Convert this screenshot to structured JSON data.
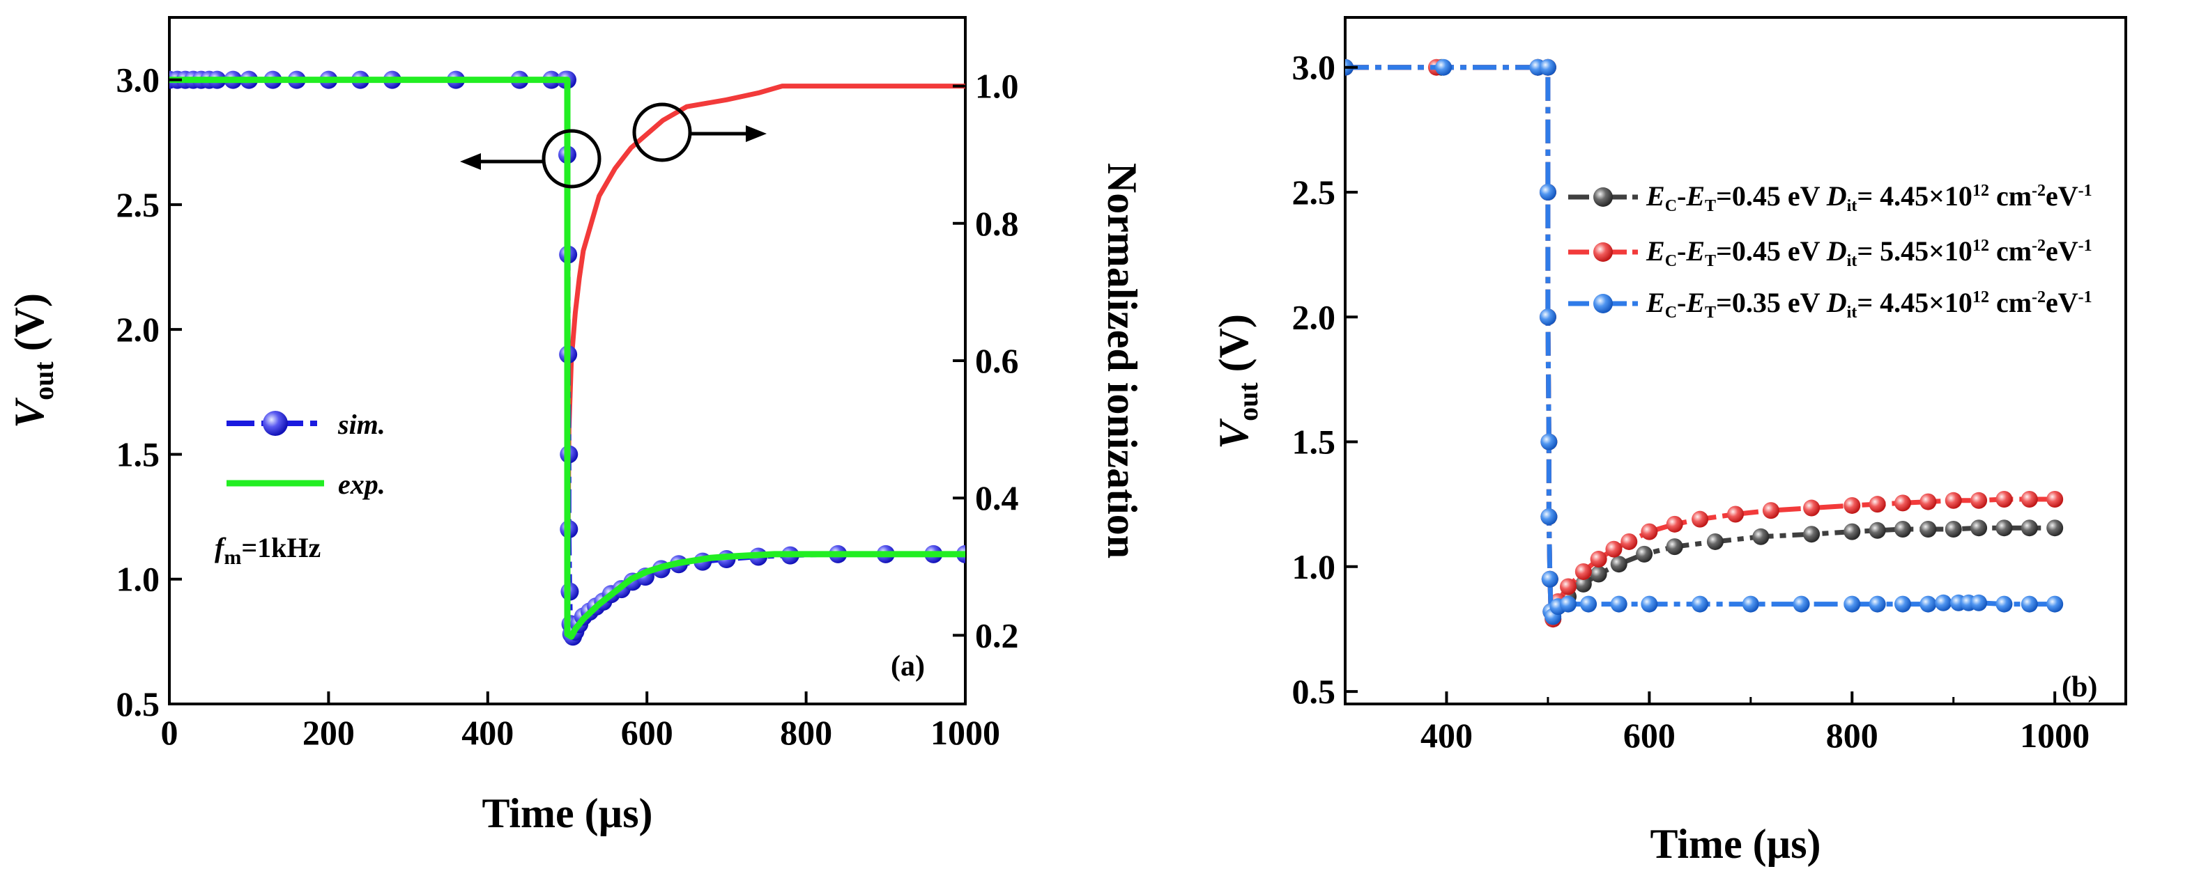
{
  "chart_data": [
    {
      "type": "line",
      "panel_label": "(a)",
      "xlabel": "Time (µs)",
      "ylabel": {
        "main": "V",
        "sub": "out",
        "unit": " (V)"
      },
      "y2label": "Normalized ionization",
      "xlim": [
        0,
        1000
      ],
      "ylim": [
        0.5,
        3.25
      ],
      "y2lim": [
        0.1,
        1.1
      ],
      "xticks": [
        "0",
        "200",
        "400",
        "600",
        "800",
        "1000"
      ],
      "yticks": [
        "0.5",
        "1.0",
        "1.5",
        "2.0",
        "2.5",
        "3.0"
      ],
      "y2ticks": [
        "0.2",
        "0.4",
        "0.6",
        "0.8",
        "1.0"
      ],
      "annotation": {
        "var": "f",
        "sub": "m",
        "rest": "=1kHz"
      },
      "series": [
        {
          "name": "sim.",
          "axis": "left",
          "color": "#1a1adf",
          "marker": "circle",
          "x": [
            0,
            10,
            20,
            30,
            40,
            50,
            60,
            80,
            100,
            130,
            160,
            200,
            240,
            280,
            360,
            440,
            480,
            498,
            500,
            500,
            501,
            501,
            502,
            502,
            503,
            504,
            505,
            507,
            510,
            515,
            520,
            528,
            536,
            545,
            555,
            568,
            582,
            598,
            618,
            640,
            670,
            700,
            740,
            780,
            840,
            900,
            960,
            1000
          ],
          "y": [
            3.0,
            3.0,
            3.0,
            3.0,
            3.0,
            3.0,
            3.0,
            3.0,
            3.0,
            3.0,
            3.0,
            3.0,
            3.0,
            3.0,
            3.0,
            3.0,
            3.0,
            3.0,
            3.0,
            2.7,
            2.3,
            1.9,
            1.5,
            1.2,
            0.95,
            0.82,
            0.78,
            0.77,
            0.79,
            0.82,
            0.85,
            0.87,
            0.89,
            0.91,
            0.94,
            0.96,
            0.99,
            1.01,
            1.04,
            1.06,
            1.07,
            1.08,
            1.09,
            1.095,
            1.1,
            1.1,
            1.1,
            1.1
          ]
        },
        {
          "name": "exp.",
          "axis": "left",
          "color": "#22ee22",
          "marker": "none",
          "x": [
            0,
            500,
            500,
            505,
            510,
            520,
            540,
            560,
            580,
            600,
            620,
            640,
            660,
            680,
            700,
            730,
            760,
            800,
            900,
            1000
          ],
          "y": [
            3.0,
            3.0,
            0.78,
            0.77,
            0.8,
            0.84,
            0.9,
            0.95,
            1.0,
            1.03,
            1.05,
            1.065,
            1.075,
            1.085,
            1.09,
            1.095,
            1.1,
            1.1,
            1.1,
            1.1
          ],
          "annotation": "fm=1kHz"
        },
        {
          "name": "Normalized ionization",
          "axis": "right",
          "color": "#f23a3a",
          "marker": "none",
          "x": [
            500,
            502,
            505,
            510,
            515,
            520,
            530,
            540,
            550,
            560,
            580,
            600,
            620,
            650,
            700,
            740,
            770,
            800,
            900,
            1000
          ],
          "y": [
            0.2,
            0.5,
            0.6,
            0.67,
            0.72,
            0.76,
            0.8,
            0.84,
            0.86,
            0.88,
            0.91,
            0.93,
            0.95,
            0.97,
            0.98,
            0.99,
            1.0,
            1.0,
            1.0,
            1.0
          ]
        }
      ]
    },
    {
      "type": "line",
      "panel_label": "(b)",
      "xlabel": "Time (µs)",
      "ylabel": {
        "main": "V",
        "sub": "out",
        "unit": " (V)"
      },
      "xlim": [
        300,
        1070
      ],
      "ylim": [
        0.45,
        3.2
      ],
      "xticks": [
        "400",
        "600",
        "800",
        "1000"
      ],
      "yticks": [
        "0.5",
        "1.0",
        "1.5",
        "2.0",
        "2.5",
        "3.0"
      ],
      "series": [
        {
          "name": "EC-ET=0.45 eV Dit= 4.45×10^12 cm^-2eV^-1",
          "label": {
            "ec": "0.45",
            "dit": "4.45"
          },
          "color": "#3f3f3f",
          "x": [
            300,
            395,
            490,
            500,
            500,
            500,
            501,
            501,
            502,
            503,
            505,
            510,
            520,
            535,
            550,
            570,
            595,
            625,
            665,
            710,
            760,
            800,
            825,
            850,
            875,
            900,
            925,
            950,
            975,
            1000
          ],
          "y": [
            3.0,
            3.0,
            3.0,
            3.0,
            2.5,
            2.0,
            1.5,
            1.2,
            0.95,
            0.82,
            0.79,
            0.84,
            0.88,
            0.93,
            0.97,
            1.01,
            1.05,
            1.08,
            1.1,
            1.12,
            1.13,
            1.14,
            1.145,
            1.15,
            1.15,
            1.15,
            1.155,
            1.155,
            1.155,
            1.155
          ]
        },
        {
          "name": "EC-ET=0.45 eV Dit= 5.45×10^12 cm^-2eV^-1",
          "label": {
            "ec": "0.45",
            "dit": "5.45"
          },
          "color": "#f23a3a",
          "x": [
            300,
            390,
            490,
            500,
            500,
            500,
            501,
            501,
            502,
            503,
            505,
            510,
            520,
            535,
            550,
            565,
            580,
            600,
            625,
            650,
            685,
            720,
            760,
            800,
            825,
            850,
            875,
            900,
            925,
            950,
            975,
            1000
          ],
          "y": [
            3.0,
            3.0,
            3.0,
            3.0,
            2.5,
            2.0,
            1.5,
            1.2,
            0.95,
            0.82,
            0.79,
            0.86,
            0.92,
            0.98,
            1.03,
            1.07,
            1.1,
            1.14,
            1.17,
            1.19,
            1.21,
            1.225,
            1.235,
            1.245,
            1.25,
            1.255,
            1.26,
            1.265,
            1.265,
            1.27,
            1.27,
            1.27
          ]
        },
        {
          "name": "EC-ET=0.35 eV Dit= 4.45×10^12 cm^-2eV^-1",
          "label": {
            "ec": "0.35",
            "dit": "4.45"
          },
          "color": "#2f7be8",
          "x": [
            300,
            397,
            490,
            500,
            500,
            500,
            501,
            501,
            502,
            503,
            505,
            510,
            520,
            540,
            570,
            600,
            650,
            700,
            750,
            800,
            825,
            850,
            875,
            890,
            905,
            915,
            925,
            950,
            975,
            1000
          ],
          "y": [
            3.0,
            3.0,
            3.0,
            3.0,
            2.5,
            2.0,
            1.5,
            1.2,
            0.95,
            0.82,
            0.8,
            0.84,
            0.85,
            0.85,
            0.85,
            0.85,
            0.85,
            0.85,
            0.85,
            0.85,
            0.85,
            0.85,
            0.85,
            0.855,
            0.855,
            0.855,
            0.855,
            0.85,
            0.85,
            0.85
          ]
        }
      ]
    }
  ]
}
